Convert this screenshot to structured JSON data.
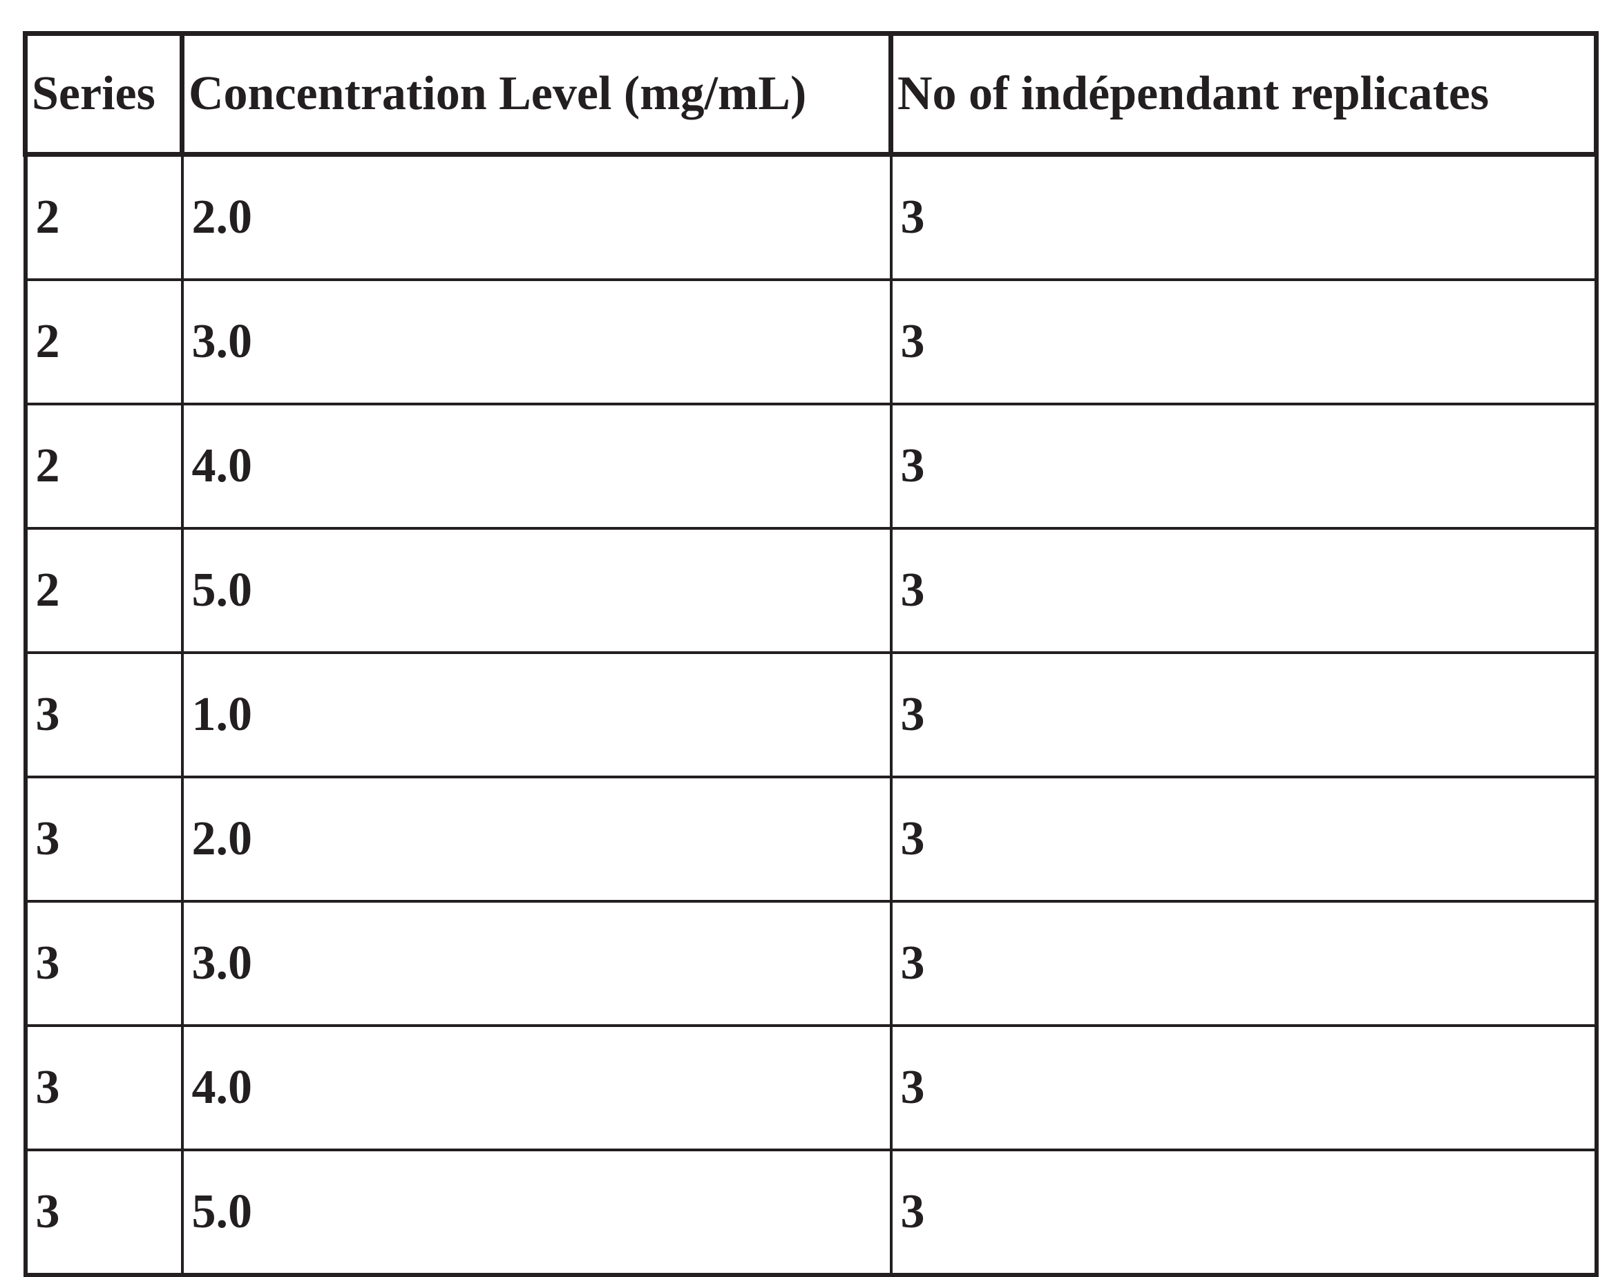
{
  "table": {
    "header": [
      "Series",
      "Concentration Level (mg/mL)",
      "No of indépendant replicates"
    ],
    "rows": [
      [
        "2",
        "2.0",
        "3"
      ],
      [
        "2",
        "3.0",
        "3"
      ],
      [
        "2",
        "4.0",
        "3"
      ],
      [
        "2",
        "5.0",
        "3"
      ],
      [
        "3",
        "1.0",
        "3"
      ],
      [
        "3",
        "2.0",
        "3"
      ],
      [
        "3",
        "3.0",
        "3"
      ],
      [
        "3",
        "4.0",
        "3"
      ],
      [
        "3",
        "5.0",
        "3"
      ]
    ]
  }
}
